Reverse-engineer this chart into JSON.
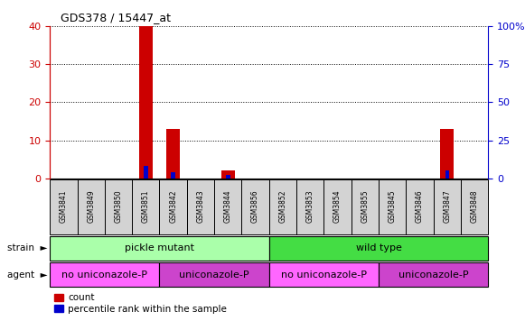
{
  "title": "GDS378 / 15447_at",
  "samples": [
    "GSM3841",
    "GSM3849",
    "GSM3850",
    "GSM3851",
    "GSM3842",
    "GSM3843",
    "GSM3844",
    "GSM3856",
    "GSM3852",
    "GSM3853",
    "GSM3854",
    "GSM3855",
    "GSM3845",
    "GSM3846",
    "GSM3847",
    "GSM3848"
  ],
  "count_values": [
    0,
    0,
    0,
    40,
    13,
    0,
    2,
    0,
    0,
    0,
    0,
    0,
    0,
    0,
    13,
    0
  ],
  "percentile_values": [
    0,
    0,
    0,
    8,
    4,
    0,
    2,
    0,
    0,
    0,
    0,
    0,
    0,
    0,
    5,
    0
  ],
  "ylim_left": [
    0,
    40
  ],
  "ylim_right": [
    0,
    100
  ],
  "yticks_left": [
    0,
    10,
    20,
    30,
    40
  ],
  "yticks_right": [
    0,
    25,
    50,
    75,
    100
  ],
  "strain_groups": [
    {
      "label": "pickle mutant",
      "start": 0,
      "end": 8,
      "color": "#aaffaa"
    },
    {
      "label": "wild type",
      "start": 8,
      "end": 16,
      "color": "#44dd44"
    }
  ],
  "agent_groups": [
    {
      "label": "no uniconazole-P",
      "start": 0,
      "end": 4,
      "color": "#ff66ff"
    },
    {
      "label": "uniconazole-P",
      "start": 4,
      "end": 8,
      "color": "#cc44cc"
    },
    {
      "label": "no uniconazole-P",
      "start": 8,
      "end": 12,
      "color": "#ff66ff"
    },
    {
      "label": "uniconazole-P",
      "start": 12,
      "end": 16,
      "color": "#cc44cc"
    }
  ],
  "count_color": "#cc0000",
  "percentile_color": "#0000cc",
  "background_color": "#ffffff",
  "sample_box_color": "#d3d3d3",
  "left_axis_color": "#cc0000",
  "right_axis_color": "#0000cc",
  "legend_count_label": "count",
  "legend_percentile_label": "percentile rank within the sample",
  "strain_label": "strain",
  "agent_label": "agent"
}
